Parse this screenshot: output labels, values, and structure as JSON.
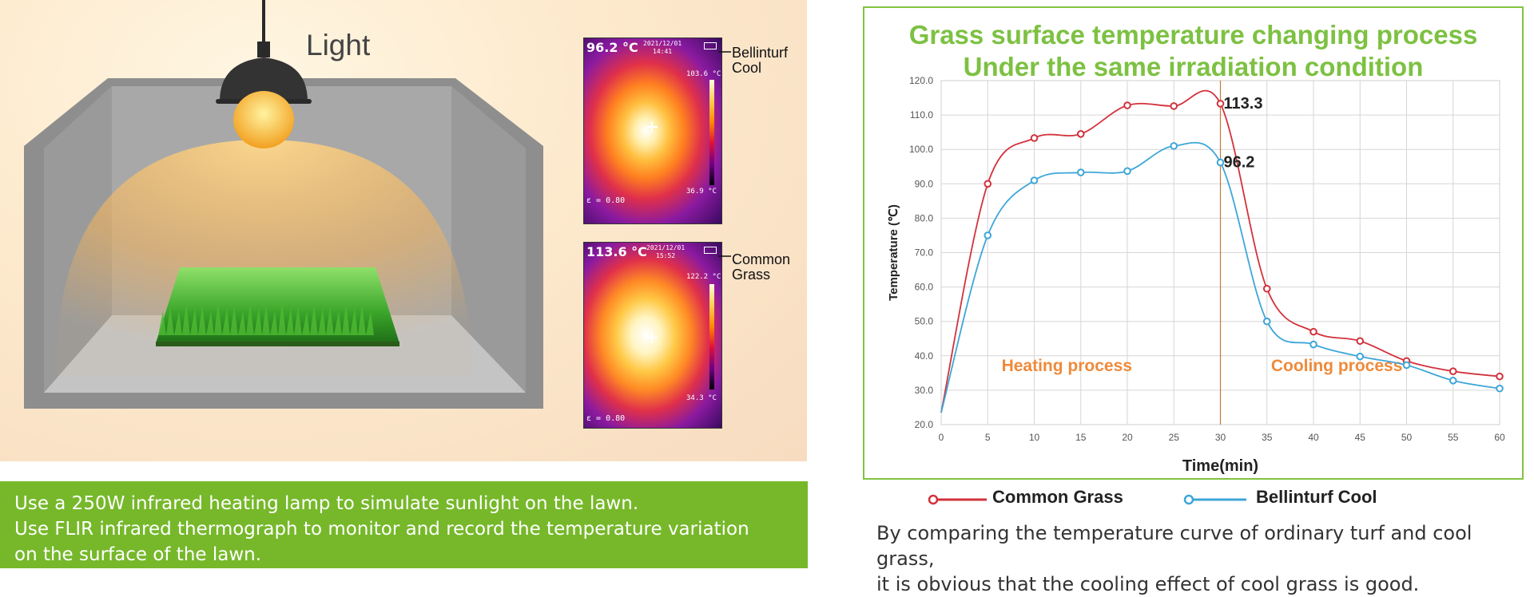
{
  "scene": {
    "light_label": "Light",
    "thermal_top": {
      "temp": "96.2 °C",
      "date": "2021/12/01",
      "time": "14:41",
      "max": "103.6 °C",
      "min": "36.9 °C",
      "emissivity": "ε = 0.80",
      "label_line1": "Bellinturf",
      "label_line2": "Cool"
    },
    "thermal_bottom": {
      "temp": "113.6 °C",
      "date": "2021/12/01",
      "time": "15:52",
      "max": "122.2 °C",
      "min": "34.3 °C",
      "emissivity": "ε = 0.80",
      "label_line1": "Common",
      "label_line2": "Grass"
    }
  },
  "description": {
    "line1": "Use a 250W infrared heating lamp to simulate sunlight on the lawn.",
    "line2": "Use FLIR infrared thermograph to monitor and record the temperature variation",
    "line3": "on the surface of the lawn."
  },
  "conclusion": {
    "line1": "By comparing the temperature curve of ordinary turf and cool grass,",
    "line2": "it is obvious that the cooling effect of cool grass is good."
  },
  "chart_data": {
    "type": "line",
    "title_line1": "Grass surface temperature changing process",
    "title_line2": "Under the same irradiation condition",
    "xlabel": "Time(min)",
    "ylabel": "Temperature (℃)",
    "xlim": [
      0,
      60
    ],
    "ylim": [
      20,
      120
    ],
    "xticks": [
      0,
      5,
      10,
      15,
      20,
      25,
      30,
      35,
      40,
      45,
      50,
      55,
      60
    ],
    "yticks": [
      "20.0",
      "30.0",
      "40.0",
      "50.0",
      "60.0",
      "70.0",
      "80.0",
      "90.0",
      "100.0",
      "110.0",
      "120.0"
    ],
    "grid": true,
    "x": [
      0,
      5,
      10,
      15,
      20,
      25,
      30,
      35,
      40,
      45,
      50,
      55,
      60
    ],
    "series": [
      {
        "name": "Common Grass",
        "color": "#d2323c",
        "values": [
          23.5,
          90.0,
          103.3,
          104.5,
          112.8,
          112.6,
          113.3,
          59.5,
          47.0,
          44.3,
          38.5,
          35.5,
          34.0
        ]
      },
      {
        "name": "Bellinturf Cool",
        "color": "#3ea6d8",
        "values": [
          23.5,
          75.0,
          91.0,
          93.3,
          93.7,
          101.0,
          96.2,
          50.0,
          43.3,
          39.8,
          37.3,
          32.8,
          30.5
        ]
      }
    ],
    "annotations": [
      {
        "text": "113.3",
        "x": 30,
        "y": 113.3
      },
      {
        "text": "96.2",
        "x": 30,
        "y": 96.2
      }
    ],
    "divider_x": 30,
    "divider_color": "#c8783c",
    "regions": [
      {
        "text": "Heating process",
        "x": 13.5
      },
      {
        "text": "Cooling process",
        "x": 42.5
      }
    ],
    "region_color": "#ee8a3a",
    "legend_position": "bottom"
  }
}
